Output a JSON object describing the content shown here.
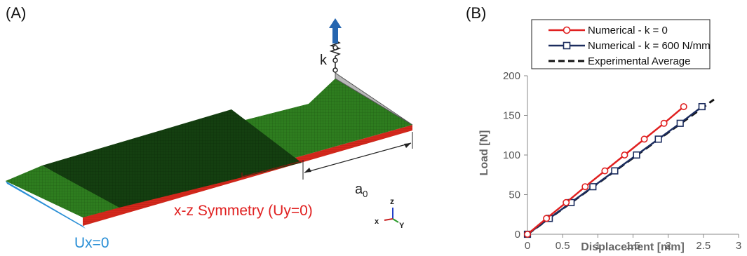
{
  "panels": {
    "a_label": "(A)",
    "b_label": "(B)"
  },
  "diagram": {
    "spring_label": "k",
    "crack_label": "a",
    "crack_subscript": "0",
    "symmetry_label": "x-z Symmetry (Uy=0)",
    "ux_label": "Ux=0",
    "triad": {
      "z": "z",
      "x": "x",
      "y": "Y"
    },
    "colors": {
      "mesh": "#2e7d1f",
      "mesh_dark": "#123d0f",
      "red": "#e02020",
      "blue": "#2a8fd6",
      "arrow": "#2666b0"
    }
  },
  "chart_data": {
    "type": "line",
    "xlabel": "Displacement [mm]",
    "ylabel": "Load [N]",
    "xlim": [
      0,
      3
    ],
    "ylim": [
      0,
      200
    ],
    "xticks": [
      0,
      0.5,
      1,
      1.5,
      2,
      2.5,
      3
    ],
    "yticks": [
      0,
      50,
      100,
      150,
      200
    ],
    "grid": false,
    "legend_position": "top",
    "series": [
      {
        "name": "Numerical - k = 0",
        "color": "#e02020",
        "marker": "circle",
        "dash": "solid",
        "x": [
          0,
          0.27,
          0.55,
          0.82,
          1.1,
          1.38,
          1.66,
          1.94,
          2.22
        ],
        "y": [
          0,
          20,
          40,
          60,
          80,
          100,
          120,
          140,
          161
        ]
      },
      {
        "name": "Numerical - k = 600 N/mm",
        "color": "#1b2c5e",
        "marker": "square",
        "dash": "solid",
        "x": [
          0,
          0.31,
          0.62,
          0.93,
          1.24,
          1.55,
          1.86,
          2.17,
          2.48
        ],
        "y": [
          0,
          20,
          40,
          60,
          80,
          100,
          120,
          140,
          161
        ]
      },
      {
        "name": "Experimental Average",
        "color": "#111111",
        "marker": "none",
        "dash": "dashed",
        "x": [
          0,
          2.65
        ],
        "y": [
          0,
          170
        ]
      }
    ]
  }
}
